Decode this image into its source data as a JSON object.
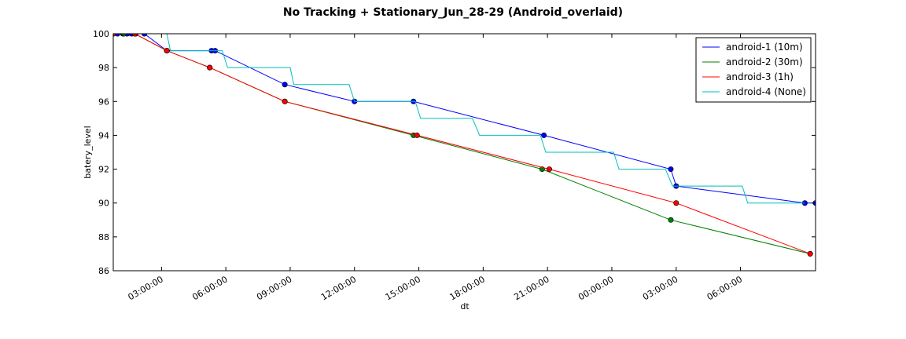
{
  "chart_data": {
    "type": "line",
    "title": "No Tracking + Stationary_Jun_28-29 (Android_overlaid)",
    "xlabel": "dt",
    "ylabel": "batery_level",
    "xlim": [
      "2016-06-28T00:45:00",
      "2016-06-29T09:30:00"
    ],
    "ylim": [
      86,
      100
    ],
    "x_ticks": [
      {
        "t": "2016-06-28T03:00:00",
        "label": "03:00:00"
      },
      {
        "t": "2016-06-28T06:00:00",
        "label": "06:00:00"
      },
      {
        "t": "2016-06-28T09:00:00",
        "label": "09:00:00"
      },
      {
        "t": "2016-06-28T12:00:00",
        "label": "12:00:00"
      },
      {
        "t": "2016-06-28T15:00:00",
        "label": "15:00:00"
      },
      {
        "t": "2016-06-28T18:00:00",
        "label": "18:00:00"
      },
      {
        "t": "2016-06-28T21:00:00",
        "label": "21:00:00"
      },
      {
        "t": "2016-06-29T00:00:00",
        "label": "00:00:00"
      },
      {
        "t": "2016-06-29T03:00:00",
        "label": "03:00:00"
      },
      {
        "t": "2016-06-29T06:00:00",
        "label": "06:00:00"
      }
    ],
    "y_ticks": [
      86,
      88,
      90,
      92,
      94,
      96,
      98,
      100
    ],
    "grid": false,
    "legend_position": "top-right",
    "series": [
      {
        "name": "android-1 (10m)",
        "color": "#0000ff",
        "markers": true,
        "points": [
          {
            "x": "2016-06-28T00:45:00",
            "y": 100
          },
          {
            "x": "2016-06-28T00:57:00",
            "y": 100
          },
          {
            "x": "2016-06-28T01:12:00",
            "y": 100
          },
          {
            "x": "2016-06-28T01:24:00",
            "y": 100
          },
          {
            "x": "2016-06-28T01:36:00",
            "y": 100
          },
          {
            "x": "2016-06-28T01:48:00",
            "y": 100
          },
          {
            "x": "2016-06-28T02:12:00",
            "y": 100
          },
          {
            "x": "2016-06-28T03:15:00",
            "y": 99
          },
          {
            "x": "2016-06-28T05:20:00",
            "y": 99
          },
          {
            "x": "2016-06-28T05:30:00",
            "y": 99
          },
          {
            "x": "2016-06-28T08:45:00",
            "y": 97
          },
          {
            "x": "2016-06-28T12:00:00",
            "y": 96
          },
          {
            "x": "2016-06-28T14:45:00",
            "y": 96
          },
          {
            "x": "2016-06-28T20:50:00",
            "y": 94
          },
          {
            "x": "2016-06-29T02:45:00",
            "y": 92
          },
          {
            "x": "2016-06-29T03:00:00",
            "y": 91
          },
          {
            "x": "2016-06-29T09:00:00",
            "y": 90
          },
          {
            "x": "2016-06-29T09:30:00",
            "y": 90
          }
        ]
      },
      {
        "name": "android-2 (30m)",
        "color": "#008000",
        "markers": true,
        "points": [
          {
            "x": "2016-06-28T00:45:00",
            "y": 100
          },
          {
            "x": "2016-06-28T01:15:00",
            "y": 100
          },
          {
            "x": "2016-06-28T01:45:00",
            "y": 100
          },
          {
            "x": "2016-06-28T03:15:00",
            "y": 99
          },
          {
            "x": "2016-06-28T05:15:00",
            "y": 98
          },
          {
            "x": "2016-06-28T08:45:00",
            "y": 96
          },
          {
            "x": "2016-06-28T14:45:00",
            "y": 94
          },
          {
            "x": "2016-06-28T20:45:00",
            "y": 92
          },
          {
            "x": "2016-06-29T02:45:00",
            "y": 89
          },
          {
            "x": "2016-06-29T09:15:00",
            "y": 87
          }
        ]
      },
      {
        "name": "android-3 (1h)",
        "color": "#ff0000",
        "markers": true,
        "points": [
          {
            "x": "2016-06-28T00:45:00",
            "y": 100
          },
          {
            "x": "2016-06-28T01:45:00",
            "y": 100
          },
          {
            "x": "2016-06-28T03:15:00",
            "y": 99
          },
          {
            "x": "2016-06-28T05:15:00",
            "y": 98
          },
          {
            "x": "2016-06-28T08:45:00",
            "y": 96
          },
          {
            "x": "2016-06-28T14:55:00",
            "y": 94
          },
          {
            "x": "2016-06-28T21:05:00",
            "y": 92
          },
          {
            "x": "2016-06-29T03:00:00",
            "y": 90
          },
          {
            "x": "2016-06-29T09:15:00",
            "y": 87
          }
        ]
      },
      {
        "name": "android-4 (None)",
        "color": "#00bfbf",
        "markers": false,
        "points": [
          {
            "x": "2016-06-28T00:45:00",
            "y": 100
          },
          {
            "x": "2016-06-28T03:15:00",
            "y": 100
          },
          {
            "x": "2016-06-28T03:25:00",
            "y": 99
          },
          {
            "x": "2016-06-28T05:50:00",
            "y": 99
          },
          {
            "x": "2016-06-28T06:05:00",
            "y": 98
          },
          {
            "x": "2016-06-28T09:00:00",
            "y": 98
          },
          {
            "x": "2016-06-28T09:10:00",
            "y": 97
          },
          {
            "x": "2016-06-28T11:45:00",
            "y": 97
          },
          {
            "x": "2016-06-28T12:00:00",
            "y": 96
          },
          {
            "x": "2016-06-28T14:50:00",
            "y": 96
          },
          {
            "x": "2016-06-28T15:05:00",
            "y": 95
          },
          {
            "x": "2016-06-28T17:30:00",
            "y": 95
          },
          {
            "x": "2016-06-28T17:50:00",
            "y": 94
          },
          {
            "x": "2016-06-28T20:40:00",
            "y": 94
          },
          {
            "x": "2016-06-28T20:55:00",
            "y": 93
          },
          {
            "x": "2016-06-29T00:05:00",
            "y": 93
          },
          {
            "x": "2016-06-29T00:20:00",
            "y": 92
          },
          {
            "x": "2016-06-29T02:30:00",
            "y": 92
          },
          {
            "x": "2016-06-29T02:50:00",
            "y": 91
          },
          {
            "x": "2016-06-29T06:05:00",
            "y": 91
          },
          {
            "x": "2016-06-29T06:20:00",
            "y": 90
          },
          {
            "x": "2016-06-29T09:00:00",
            "y": 90
          }
        ]
      }
    ]
  }
}
